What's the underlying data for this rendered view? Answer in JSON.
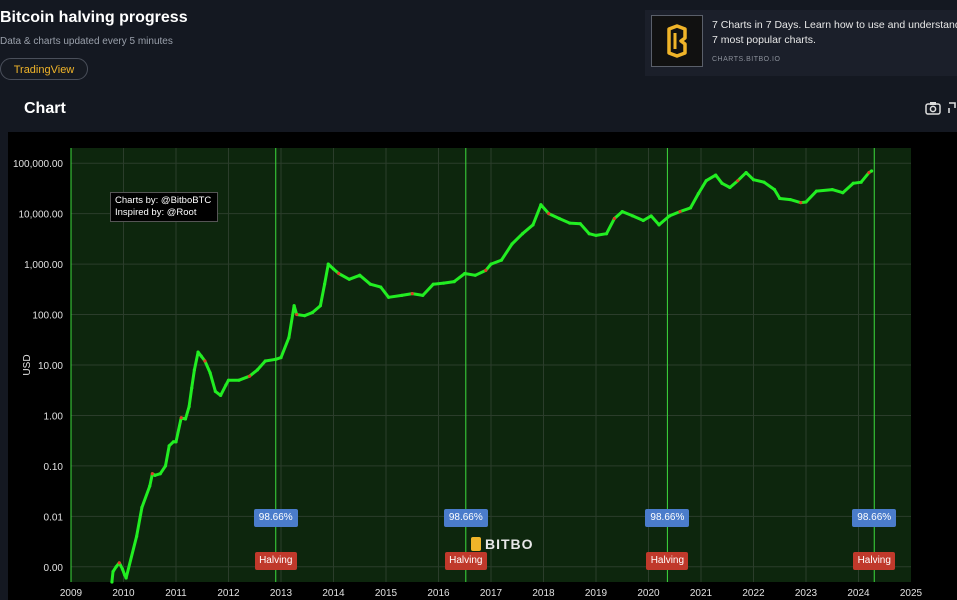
{
  "header": {
    "title": "Bitcoin halving progress",
    "subtitle": "Data & charts updated every 5 minutes",
    "tradingview_label": "TradingView"
  },
  "ad": {
    "line1": "7 Charts in 7 Days. Learn how to use and understand",
    "line2": "7 most popular charts.",
    "url": "CHARTS.BITBO.IO",
    "logo_icon": "bitbo-logo-icon"
  },
  "chart_section": {
    "heading": "Chart",
    "camera_icon": "camera-icon",
    "expand_icon": "expand-icon"
  },
  "credit": {
    "line1": "Charts by: @BitboBTC",
    "line2": "Inspired by: @Root"
  },
  "watermark": "BITBO",
  "colors": {
    "background": "#000000",
    "plot_background": "#0d260d",
    "grid": "#2b3d2b",
    "halving_line": "#3ddc3d",
    "price_line": "#22ee22",
    "price_red": "#e03a2a",
    "badge_pct": "#4a7ccb",
    "badge_halving": "#c0392b",
    "accent": "#f0b429"
  },
  "chart_data": {
    "type": "line",
    "ylabel": "USD",
    "yscale": "log",
    "ylim": [
      0.0005,
      200000
    ],
    "xlim": [
      2009.0,
      2025.0
    ],
    "y_ticks": [
      {
        "value": 100000,
        "label": "100,000.00"
      },
      {
        "value": 10000,
        "label": "10,000.00"
      },
      {
        "value": 1000,
        "label": "1,000.00"
      },
      {
        "value": 100,
        "label": "100.00"
      },
      {
        "value": 10,
        "label": "10.00"
      },
      {
        "value": 1,
        "label": "1.00"
      },
      {
        "value": 0.1,
        "label": "0.10"
      },
      {
        "value": 0.01,
        "label": "0.01"
      },
      {
        "value": 0.001,
        "label": "0.00"
      }
    ],
    "x_ticks": [
      "2009",
      "2010",
      "2011",
      "2012",
      "2013",
      "2014",
      "2015",
      "2016",
      "2017",
      "2018",
      "2019",
      "2020",
      "2021",
      "2022",
      "2023",
      "2024",
      "2025"
    ],
    "grid": true,
    "series": [
      {
        "points": [
          [
            2009.78,
            0.0005
          ],
          [
            2009.8,
            0.0008
          ],
          [
            2009.86,
            0.001
          ],
          [
            2009.92,
            0.0012
          ],
          [
            2009.98,
            0.0009
          ],
          [
            2010.02,
            0.0007
          ],
          [
            2010.05,
            0.0006
          ],
          [
            2010.25,
            0.004
          ],
          [
            2010.35,
            0.015
          ],
          [
            2010.5,
            0.04
          ],
          [
            2010.55,
            0.07
          ],
          [
            2010.6,
            0.065
          ],
          [
            2010.7,
            0.07
          ],
          [
            2010.8,
            0.1
          ],
          [
            2010.87,
            0.25
          ],
          [
            2010.95,
            0.3
          ],
          [
            2011.0,
            0.3
          ],
          [
            2011.1,
            0.9
          ],
          [
            2011.18,
            0.85
          ],
          [
            2011.25,
            1.5
          ],
          [
            2011.3,
            3.5
          ],
          [
            2011.35,
            8.0
          ],
          [
            2011.42,
            18
          ],
          [
            2011.48,
            15
          ],
          [
            2011.55,
            12
          ],
          [
            2011.65,
            7
          ],
          [
            2011.75,
            3
          ],
          [
            2011.85,
            2.5
          ],
          [
            2011.95,
            4
          ],
          [
            2012.0,
            5
          ],
          [
            2012.2,
            5
          ],
          [
            2012.4,
            6
          ],
          [
            2012.55,
            8
          ],
          [
            2012.7,
            12
          ],
          [
            2012.9,
            13
          ],
          [
            2013.0,
            14
          ],
          [
            2013.15,
            35
          ],
          [
            2013.25,
            150
          ],
          [
            2013.3,
            100
          ],
          [
            2013.45,
            95
          ],
          [
            2013.6,
            110
          ],
          [
            2013.75,
            150
          ],
          [
            2013.83,
            400
          ],
          [
            2013.9,
            1000
          ],
          [
            2014.0,
            800
          ],
          [
            2014.1,
            650
          ],
          [
            2014.3,
            500
          ],
          [
            2014.5,
            600
          ],
          [
            2014.7,
            400
          ],
          [
            2014.9,
            350
          ],
          [
            2015.05,
            220
          ],
          [
            2015.3,
            240
          ],
          [
            2015.5,
            260
          ],
          [
            2015.7,
            240
          ],
          [
            2015.9,
            400
          ],
          [
            2016.1,
            420
          ],
          [
            2016.3,
            450
          ],
          [
            2016.5,
            650
          ],
          [
            2016.7,
            600
          ],
          [
            2016.9,
            750
          ],
          [
            2017.0,
            1000
          ],
          [
            2017.2,
            1200
          ],
          [
            2017.4,
            2500
          ],
          [
            2017.6,
            4000
          ],
          [
            2017.8,
            6000
          ],
          [
            2017.95,
            15000
          ],
          [
            2018.1,
            10000
          ],
          [
            2018.3,
            8000
          ],
          [
            2018.5,
            6500
          ],
          [
            2018.7,
            6300
          ],
          [
            2018.87,
            4000
          ],
          [
            2019.0,
            3700
          ],
          [
            2019.2,
            4000
          ],
          [
            2019.35,
            8000
          ],
          [
            2019.5,
            11000
          ],
          [
            2019.7,
            9000
          ],
          [
            2019.9,
            7300
          ],
          [
            2020.05,
            9000
          ],
          [
            2020.2,
            6000
          ],
          [
            2020.4,
            9000
          ],
          [
            2020.6,
            11000
          ],
          [
            2020.8,
            13000
          ],
          [
            2020.95,
            25000
          ],
          [
            2021.1,
            45000
          ],
          [
            2021.28,
            58000
          ],
          [
            2021.4,
            40000
          ],
          [
            2021.55,
            33000
          ],
          [
            2021.7,
            45000
          ],
          [
            2021.86,
            65000
          ],
          [
            2022.0,
            47000
          ],
          [
            2022.2,
            42000
          ],
          [
            2022.4,
            30000
          ],
          [
            2022.5,
            20000
          ],
          [
            2022.7,
            19000
          ],
          [
            2022.9,
            16500
          ],
          [
            2023.0,
            17000
          ],
          [
            2023.2,
            28000
          ],
          [
            2023.5,
            30000
          ],
          [
            2023.7,
            26000
          ],
          [
            2023.9,
            40000
          ],
          [
            2024.05,
            42000
          ],
          [
            2024.2,
            65000
          ],
          [
            2024.25,
            70000
          ]
        ]
      }
    ],
    "halvings": [
      {
        "x": 2012.9,
        "pct": "98.66%",
        "label": "Halving"
      },
      {
        "x": 2016.52,
        "pct": "98.66%",
        "label": "Halving"
      },
      {
        "x": 2020.36,
        "pct": "98.66%",
        "label": "Halving"
      },
      {
        "x": 2024.3,
        "pct": "98.66%",
        "label": "Halving"
      }
    ]
  }
}
